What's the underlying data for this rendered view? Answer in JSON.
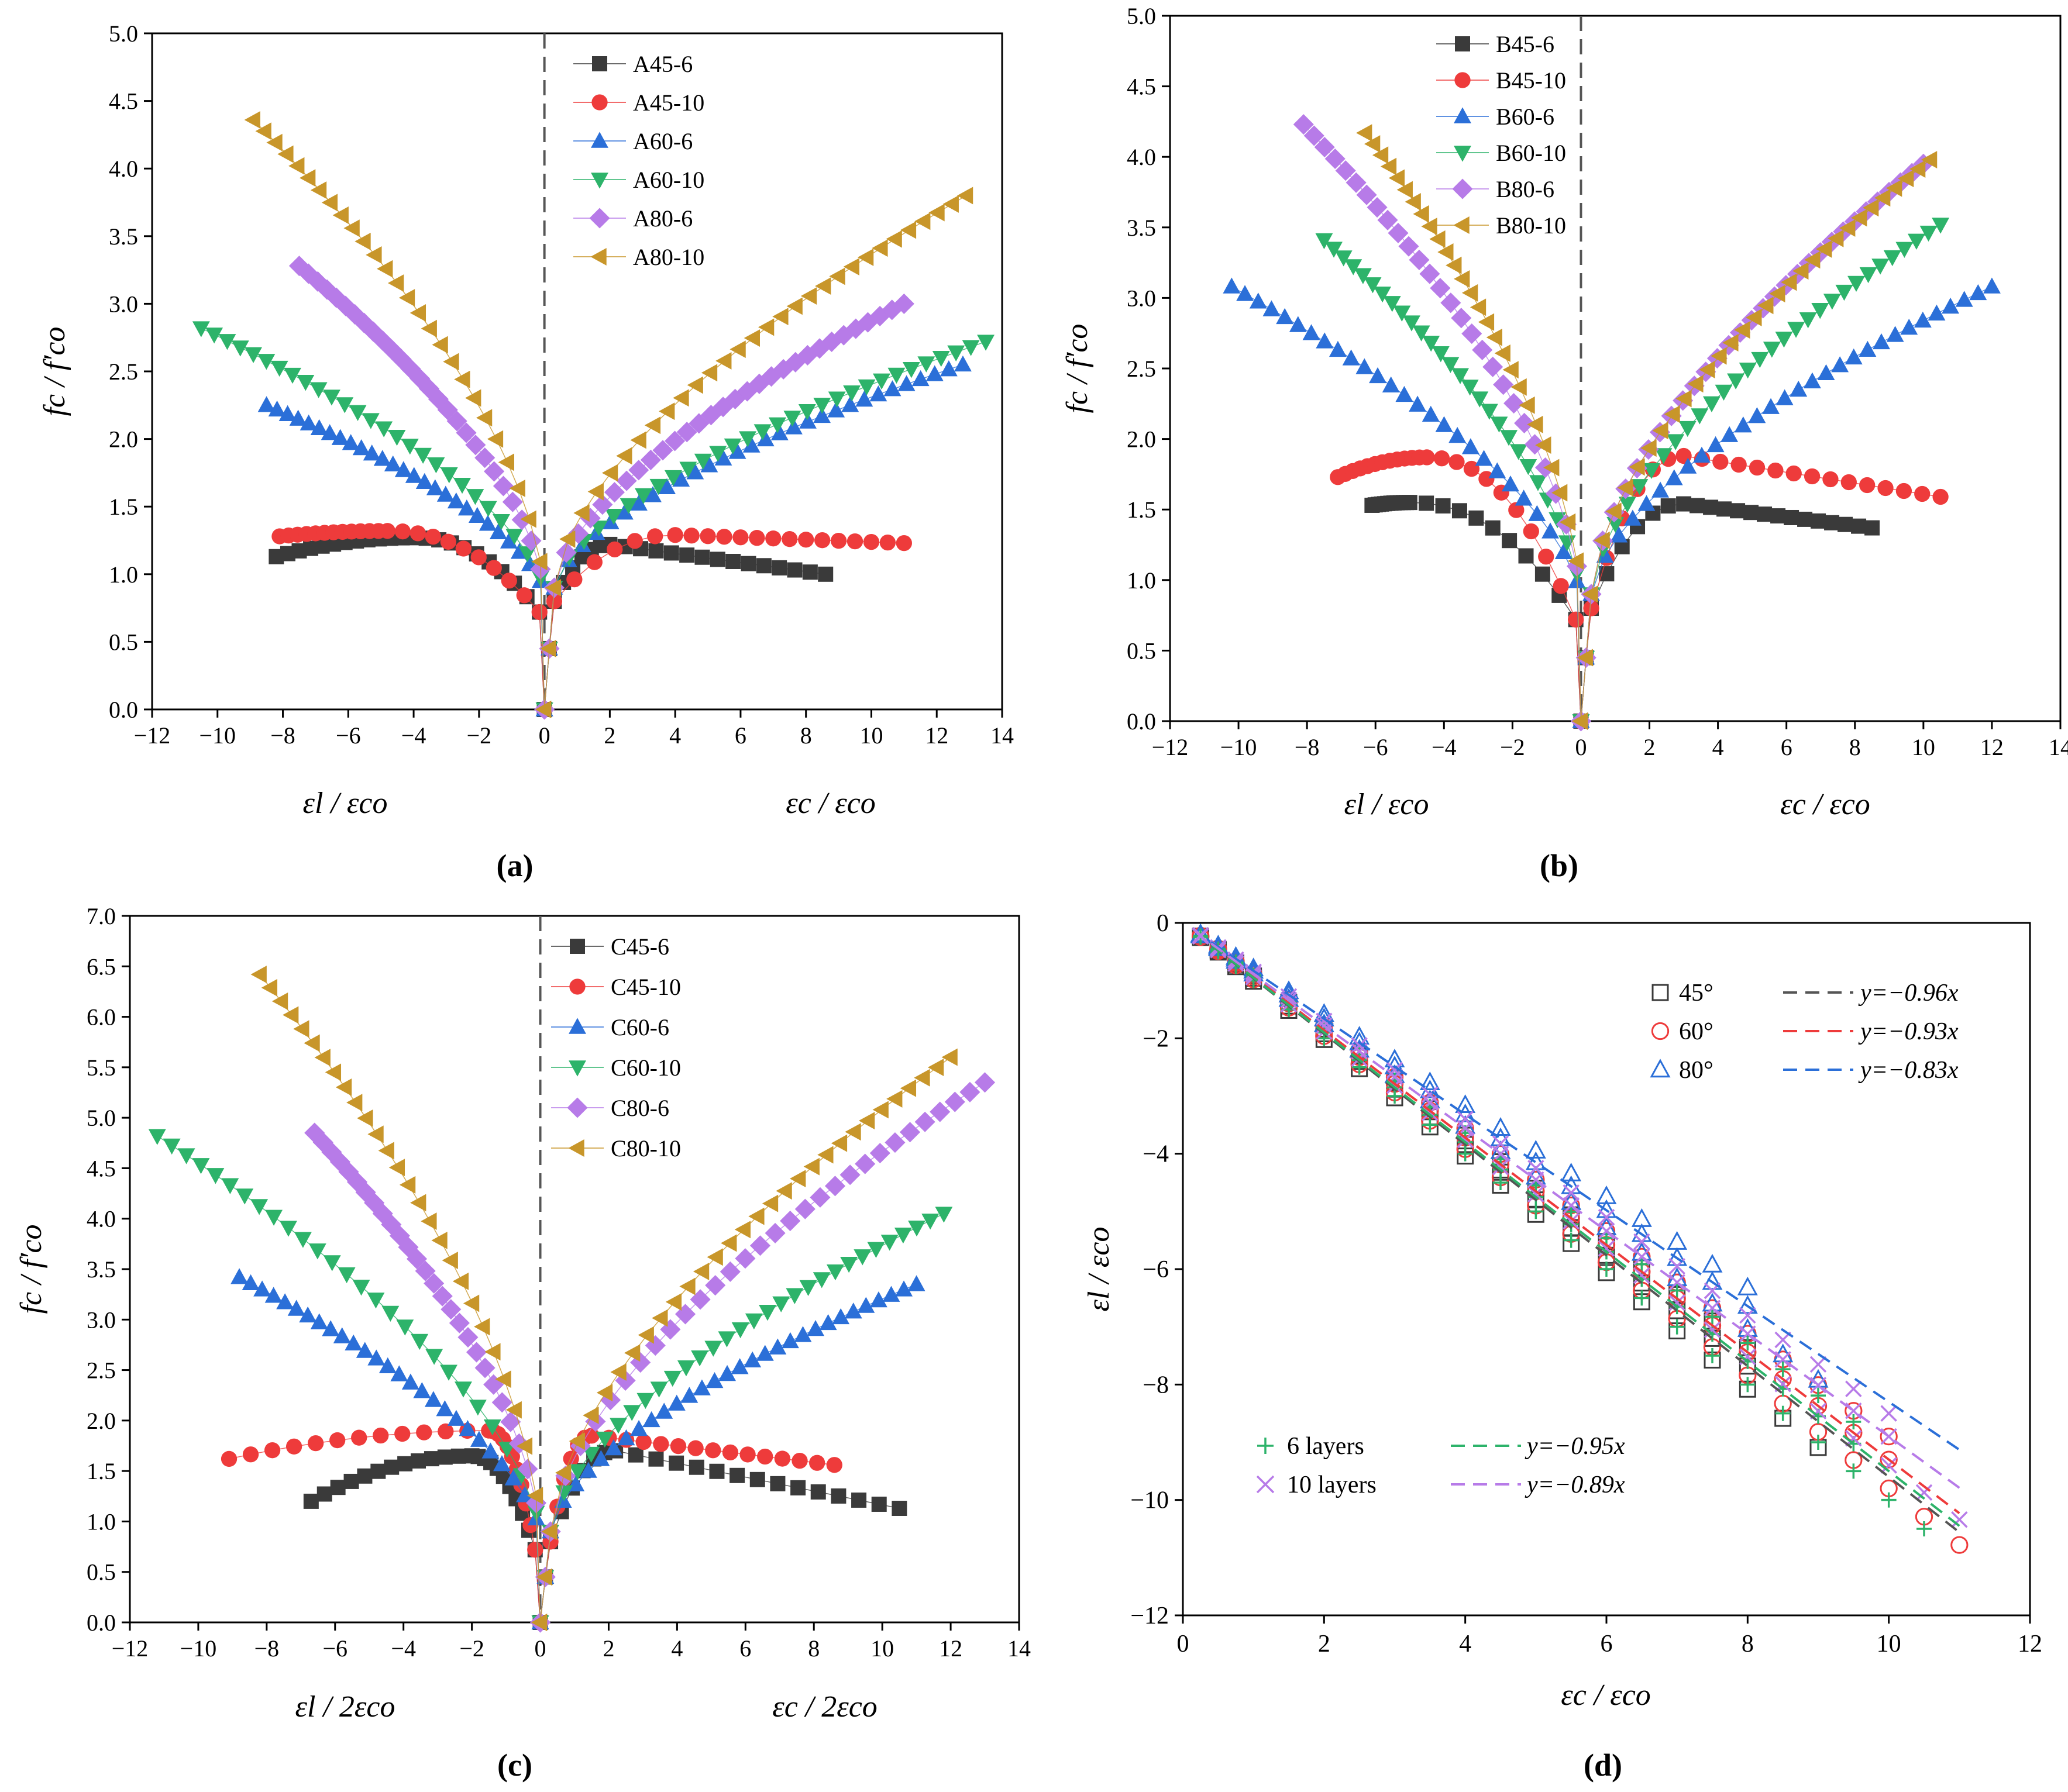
{
  "colors": {
    "black": "#3a3a3a",
    "red": "#ee3b3b",
    "blue": "#2b6fd8",
    "green": "#2db36a",
    "purple": "#b77be8",
    "gold": "#c8962a",
    "dash": "#555555"
  },
  "chart_data": [
    {
      "panel": "(a)",
      "type": "scatter",
      "x_left_label": "εl / εco",
      "x_right_label": "εc / εco",
      "ylabel": "fc / f′co",
      "xlim": [
        -12,
        14
      ],
      "ylim": [
        0,
        5
      ],
      "x_ticks": [
        -12,
        -10,
        -8,
        -6,
        -4,
        -2,
        0,
        2,
        4,
        6,
        8,
        10,
        12,
        14
      ],
      "y_ticks": [
        0,
        0.5,
        1,
        1.5,
        2,
        2.5,
        3,
        3.5,
        4,
        4.5,
        5
      ],
      "legend": "top-center",
      "series": [
        {
          "name": "A45-6",
          "color": "#3a3a3a",
          "marker": "square",
          "lat_end": [
            -8.2,
            1.13
          ],
          "lat_peak": [
            -4.0,
            1.27
          ],
          "ax_peak": [
            2.0,
            1.22
          ],
          "ax_end": [
            8.6,
            1.0
          ]
        },
        {
          "name": "A45-10",
          "color": "#ee3b3b",
          "marker": "circle",
          "lat_end": [
            -8.1,
            1.28
          ],
          "lat_peak": [
            -4.8,
            1.32
          ],
          "ax_peak": [
            4.0,
            1.29
          ],
          "ax_end": [
            11.0,
            1.23
          ]
        },
        {
          "name": "A60-6",
          "color": "#2b6fd8",
          "marker": "triangle-up",
          "lat_end": [
            -8.5,
            2.25
          ],
          "ax_end": [
            12.8,
            2.55
          ]
        },
        {
          "name": "A60-10",
          "color": "#2db36a",
          "marker": "triangle-down",
          "lat_end": [
            -10.5,
            2.82
          ],
          "ax_end": [
            13.5,
            2.72
          ]
        },
        {
          "name": "A80-6",
          "color": "#b77be8",
          "marker": "diamond",
          "lat_end": [
            -7.5,
            3.28
          ],
          "ax_end": [
            11.0,
            3.0
          ]
        },
        {
          "name": "A80-10",
          "color": "#c8962a",
          "marker": "triangle-left",
          "lat_end": [
            -8.9,
            4.36
          ],
          "ax_end": [
            12.9,
            3.8
          ]
        }
      ]
    },
    {
      "panel": "(b)",
      "type": "scatter",
      "x_left_label": "εl / εco",
      "x_right_label": "εc / εco",
      "ylabel": "fc / f′co",
      "xlim": [
        -12,
        14
      ],
      "ylim": [
        0,
        5
      ],
      "x_ticks": [
        -12,
        -10,
        -8,
        -6,
        -4,
        -2,
        0,
        2,
        4,
        6,
        8,
        10,
        12,
        14
      ],
      "y_ticks": [
        0,
        0.5,
        1,
        1.5,
        2,
        2.5,
        3,
        3.5,
        4,
        4.5,
        5
      ],
      "legend": "top-left of center",
      "series": [
        {
          "name": "B45-6",
          "color": "#3a3a3a",
          "marker": "square",
          "lat_end": [
            -6.1,
            1.53
          ],
          "lat_peak": [
            -5.0,
            1.55
          ],
          "ax_peak": [
            3.0,
            1.54
          ],
          "ax_end": [
            8.5,
            1.37
          ]
        },
        {
          "name": "B45-10",
          "color": "#ee3b3b",
          "marker": "circle",
          "lat_end": [
            -7.1,
            1.73
          ],
          "lat_peak": [
            -4.5,
            1.87
          ],
          "ax_peak": [
            3.0,
            1.88
          ],
          "ax_end": [
            10.5,
            1.59
          ]
        },
        {
          "name": "B60-6",
          "color": "#2b6fd8",
          "marker": "triangle-up",
          "lat_end": [
            -10.2,
            3.08
          ],
          "ax_end": [
            12.0,
            3.08
          ]
        },
        {
          "name": "B60-10",
          "color": "#2db36a",
          "marker": "triangle-down",
          "lat_end": [
            -7.5,
            3.41
          ],
          "ax_end": [
            10.5,
            3.52
          ]
        },
        {
          "name": "B80-6",
          "color": "#b77be8",
          "marker": "diamond",
          "lat_end": [
            -8.1,
            4.23
          ],
          "ax_end": [
            10.0,
            3.95
          ]
        },
        {
          "name": "B80-10",
          "color": "#c8962a",
          "marker": "triangle-left",
          "lat_end": [
            -6.3,
            4.17
          ],
          "ax_end": [
            10.2,
            3.98
          ]
        }
      ]
    },
    {
      "panel": "(c)",
      "type": "scatter",
      "x_left_label": "εl / 2εco",
      "x_right_label": "εc / 2εco",
      "ylabel": "fc / f′co",
      "xlim": [
        -12,
        14
      ],
      "ylim": [
        0,
        7
      ],
      "x_ticks": [
        -12,
        -10,
        -8,
        -6,
        -4,
        -2,
        0,
        2,
        4,
        6,
        8,
        10,
        12,
        14
      ],
      "y_ticks": [
        0,
        0.5,
        1,
        1.5,
        2,
        2.5,
        3,
        3.5,
        4,
        4.5,
        5,
        5.5,
        6,
        6.5,
        7
      ],
      "legend": "top-center",
      "series": [
        {
          "name": "C45-6",
          "color": "#3a3a3a",
          "marker": "square",
          "lat_end": [
            -6.7,
            1.2
          ],
          "lat_peak": [
            -2.0,
            1.65
          ],
          "ax_peak": [
            2.2,
            1.7
          ],
          "ax_end": [
            10.5,
            1.13
          ]
        },
        {
          "name": "C45-10",
          "color": "#ee3b3b",
          "marker": "circle",
          "lat_end": [
            -9.1,
            1.62
          ],
          "lat_peak": [
            -1.5,
            1.9
          ],
          "ax_peak": [
            1.5,
            1.85
          ],
          "ax_end": [
            8.6,
            1.56
          ]
        },
        {
          "name": "C60-6",
          "color": "#2b6fd8",
          "marker": "triangle-up",
          "lat_end": [
            -8.8,
            3.42
          ],
          "ax_end": [
            11.0,
            3.35
          ]
        },
        {
          "name": "C60-10",
          "color": "#2db36a",
          "marker": "triangle-down",
          "lat_end": [
            -11.2,
            4.82
          ],
          "ax_end": [
            11.8,
            4.05
          ]
        },
        {
          "name": "C80-6",
          "color": "#b77be8",
          "marker": "diamond",
          "lat_end": [
            -6.6,
            4.85
          ],
          "ax_end": [
            13.0,
            5.35
          ]
        },
        {
          "name": "C80-10",
          "color": "#c8962a",
          "marker": "triangle-left",
          "lat_end": [
            -8.2,
            6.42
          ],
          "ax_end": [
            12.0,
            5.6
          ]
        }
      ]
    },
    {
      "panel": "(d)",
      "type": "scatter",
      "xlabel": "εc / εco",
      "ylabel": "εl / εco",
      "xlim": [
        0,
        12
      ],
      "ylim": [
        -12,
        0
      ],
      "x_ticks": [
        0,
        2,
        4,
        6,
        8,
        10,
        12
      ],
      "y_ticks": [
        -12,
        -10,
        -8,
        -6,
        -4,
        -2,
        0
      ],
      "legend": "top-right and bottom-left",
      "groups": [
        {
          "name": "45°",
          "marker": "open-square",
          "color": "#3a3a3a",
          "fit_label": "y=−0.96x",
          "slope": -0.96,
          "fit_color": "#555555",
          "xmax": 9.0
        },
        {
          "name": "60°",
          "marker": "open-circle",
          "color": "#ee3b3b",
          "fit_label": "y=−0.93x",
          "slope": -0.93,
          "fit_color": "#ee3b3b",
          "xmax": 11.0
        },
        {
          "name": "80°",
          "marker": "open-triangle",
          "color": "#2b6fd8",
          "fit_label": "y=−0.83x",
          "slope": -0.83,
          "fit_color": "#2b6fd8",
          "xmax": 9.0
        },
        {
          "name": "6 layers",
          "marker": "plus",
          "color": "#2db36a",
          "fit_label": "y=−0.95x",
          "slope": -0.95,
          "fit_color": "#2db36a",
          "xmax": 10.5
        },
        {
          "name": "10 layers",
          "marker": "cross",
          "color": "#b77be8",
          "fit_label": "y=−0.89x",
          "slope": -0.89,
          "fit_color": "#b77be8",
          "xmax": 11.0
        }
      ]
    }
  ]
}
